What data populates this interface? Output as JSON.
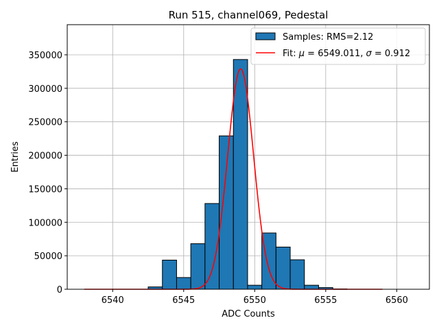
{
  "chart_data": {
    "type": "bar",
    "title": "Run 515, channel069, Pedestal",
    "xlabel": "ADC Counts",
    "ylabel": "Entries",
    "xlim": [
      6536.8,
      6562.3
    ],
    "ylim": [
      0,
      395000
    ],
    "xticks": [
      6540,
      6545,
      6550,
      6555,
      6560
    ],
    "yticks": [
      0,
      50000,
      100000,
      150000,
      200000,
      250000,
      300000,
      350000
    ],
    "grid": true,
    "legend_position": "top-right",
    "bar_color": "#1f77b4",
    "fit_color": "#ff0000",
    "histogram": {
      "name": "Samples: RMS=2.12",
      "bin_width": 1,
      "bins": [
        {
          "x": 6543,
          "count": 3500
        },
        {
          "x": 6544,
          "count": 43500
        },
        {
          "x": 6545,
          "count": 17500
        },
        {
          "x": 6546,
          "count": 68000
        },
        {
          "x": 6547,
          "count": 128000
        },
        {
          "x": 6548,
          "count": 229000
        },
        {
          "x": 6549,
          "count": 343000
        },
        {
          "x": 6550,
          "count": 6000
        },
        {
          "x": 6551,
          "count": 84000
        },
        {
          "x": 6552,
          "count": 63000
        },
        {
          "x": 6553,
          "count": 44000
        },
        {
          "x": 6554,
          "count": 6000
        },
        {
          "x": 6555,
          "count": 2500
        },
        {
          "x": 6556,
          "count": 500
        }
      ]
    },
    "fit": {
      "name": "Fit: μ = 6549.011, σ = 0.912",
      "label_prefix": "Fit: ",
      "label_mu_symbol": "μ",
      "label_mu_value": " = 6549.011, ",
      "label_sigma_symbol": "σ",
      "label_sigma_value": " = 0.912",
      "mu": 6549.011,
      "sigma": 0.912,
      "amplitude": 329000,
      "x_range": [
        6538,
        6559
      ]
    }
  }
}
